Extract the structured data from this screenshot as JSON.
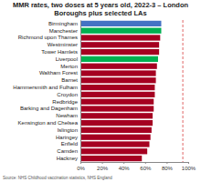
{
  "chart_data": {
    "type": "bar",
    "orientation": "horizontal",
    "title": "MMR rates, two doses at 5 years old, 2022-3 – London Boroughs plus selected LAs",
    "source": "Source: NHS Childhood vaccination statistics, NHS England",
    "categories": [
      "Birmingham",
      "Manchester",
      "Richmond upon Thames",
      "Westminster",
      "Tower Hamlets",
      "Liverpool",
      "Merton",
      "Waltham Forest",
      "Barnet",
      "Hammersmith and Fulham",
      "Croydon",
      "Redbridge",
      "Barking and Dagenham",
      "Newham",
      "Kensington and Chelsea",
      "Islington",
      "Haringey",
      "Enfield",
      "Camden",
      "Hackney"
    ],
    "values": [
      75,
      75,
      74,
      73,
      73,
      72,
      71,
      70,
      70,
      69,
      69,
      68,
      68,
      67,
      67,
      66,
      65,
      64,
      62,
      57
    ],
    "colors": [
      "#4472c4",
      "#00b050",
      "#a50021",
      "#a50021",
      "#a50021",
      "#00b050",
      "#a50021",
      "#a50021",
      "#a50021",
      "#a50021",
      "#a50021",
      "#a50021",
      "#a50021",
      "#a50021",
      "#a50021",
      "#a50021",
      "#a50021",
      "#a50021",
      "#a50021",
      "#a50021"
    ],
    "reference_line": 95,
    "xlim": [
      0,
      100
    ],
    "xticks": [
      {
        "value": 0,
        "label": "0%"
      },
      {
        "value": 20,
        "label": "20%"
      },
      {
        "value": 40,
        "label": "40%"
      },
      {
        "value": 60,
        "label": "60%"
      },
      {
        "value": 80,
        "label": "80%"
      },
      {
        "value": 100,
        "label": "100%"
      }
    ],
    "grid": false
  }
}
